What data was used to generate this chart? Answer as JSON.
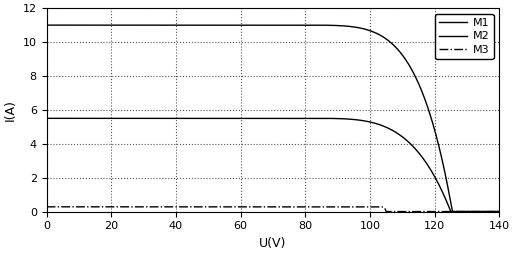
{
  "title": "",
  "xlabel": "U(V)",
  "ylabel": "I(A)",
  "xlim": [
    0,
    140
  ],
  "ylim": [
    0,
    12
  ],
  "xticks": [
    0,
    20,
    40,
    60,
    80,
    100,
    120,
    140
  ],
  "yticks": [
    0,
    2,
    4,
    6,
    8,
    10,
    12
  ],
  "legend_labels": [
    "M1",
    "M2",
    "M3"
  ],
  "legend_linestyles": [
    "-",
    "-",
    "-."
  ],
  "line_color": "#000000",
  "grid_color": "#555555",
  "M1_isc": 11.0,
  "M1_voc": 125.5,
  "M1_flat_end": 75.0,
  "M1_n": 5.0,
  "M2_isc": 5.5,
  "M2_voc": 125.0,
  "M2_flat_end": 80.0,
  "M2_n": 4.0,
  "M3_isc": 0.28,
  "M3_voc": 105.0,
  "M3_flat_end": 100.0,
  "M3_n": 12.0,
  "background_color": "#ffffff",
  "figsize": [
    5.14,
    2.54
  ],
  "dpi": 100
}
